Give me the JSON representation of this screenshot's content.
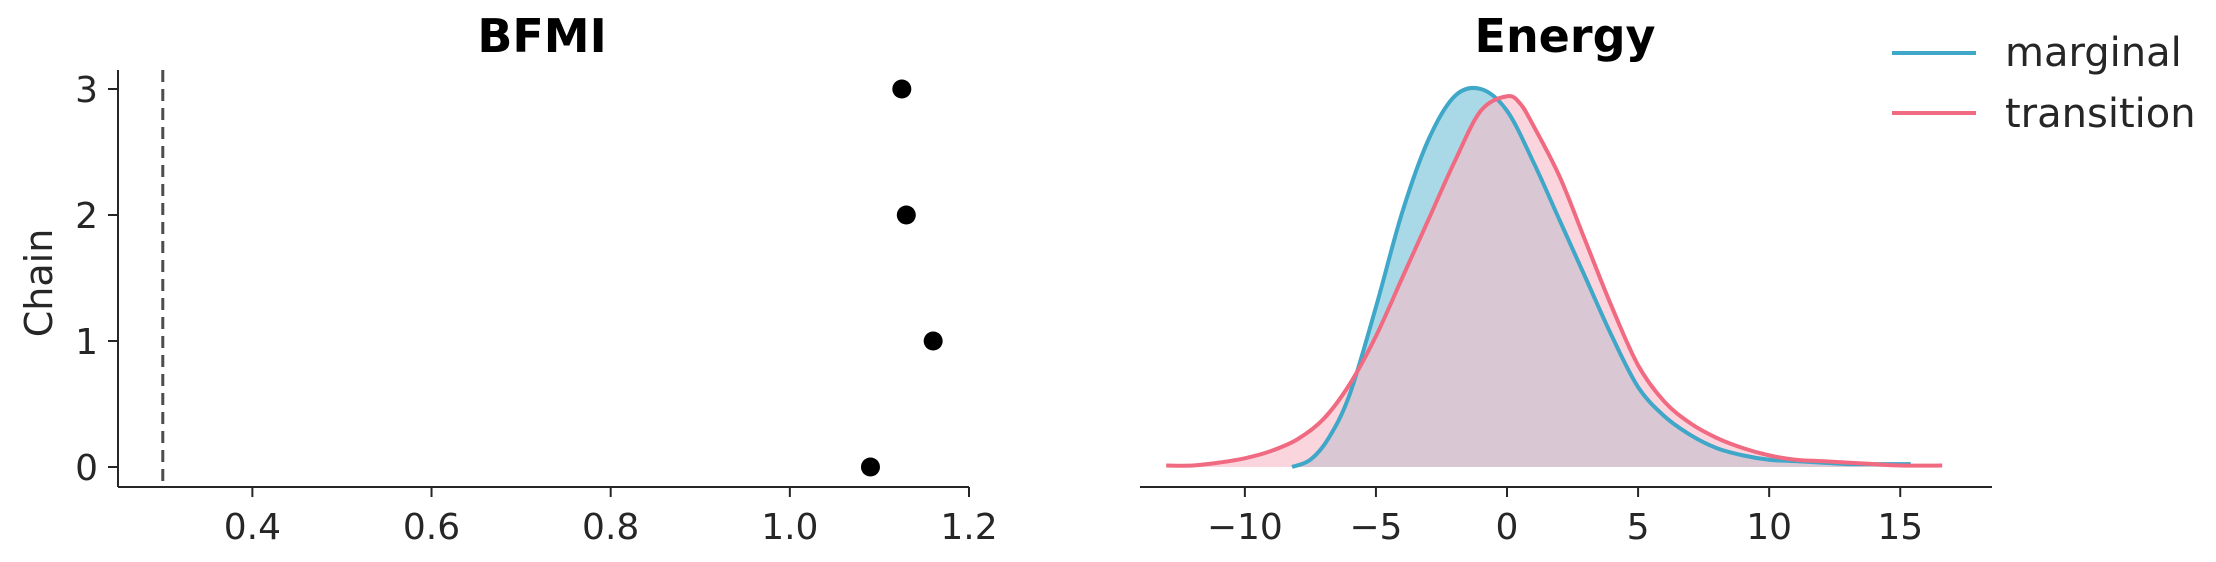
{
  "chart_data": [
    {
      "type": "scatter",
      "title": "BFMI",
      "xlabel": "",
      "ylabel": "Chain",
      "xlim": [
        0.25,
        1.2
      ],
      "ylim": [
        -0.15,
        3.15
      ],
      "xticks": [
        "0.4",
        "0.6",
        "0.8",
        "1.0",
        "1.2"
      ],
      "yticks": [
        "0",
        "1",
        "2",
        "3"
      ],
      "reference_line": 0.3,
      "points": [
        {
          "chain": 0,
          "value": 1.09
        },
        {
          "chain": 1,
          "value": 1.16
        },
        {
          "chain": 2,
          "value": 1.13
        },
        {
          "chain": 3,
          "value": 1.125
        }
      ],
      "colors": {
        "points": "#000000",
        "reference_line": "#4d4d4d"
      }
    },
    {
      "type": "area",
      "title": "Energy",
      "xlabel": "",
      "ylabel": "",
      "xlim": [
        -14,
        18.5
      ],
      "xticks": [
        "−10",
        "−5",
        "0",
        "5",
        "10",
        "15"
      ],
      "legend_position": "top-right",
      "series": [
        {
          "name": "marginal",
          "color": "#3fa7c8",
          "fill": "#a9d9e6",
          "x": [
            -8.2,
            -7.5,
            -6.8,
            -6.0,
            -5.0,
            -4.0,
            -3.0,
            -2.0,
            -1.0,
            0.0,
            1.0,
            2.0,
            3.0,
            4.0,
            5.0,
            6.0,
            7.0,
            8.0,
            9.0,
            10.0,
            11.0,
            12.0,
            13.0,
            14.0,
            15.4
          ],
          "y": [
            0.0,
            0.005,
            0.02,
            0.05,
            0.11,
            0.175,
            0.225,
            0.255,
            0.26,
            0.245,
            0.21,
            0.17,
            0.13,
            0.09,
            0.055,
            0.035,
            0.022,
            0.013,
            0.008,
            0.005,
            0.004,
            0.003,
            0.002,
            0.002,
            0.002
          ]
        },
        {
          "name": "transition",
          "color": "#f06b82",
          "fill": "#f8bcc8",
          "x": [
            -13.0,
            -12.0,
            -11.0,
            -10.0,
            -9.0,
            -8.0,
            -7.0,
            -6.0,
            -5.0,
            -4.0,
            -3.0,
            -2.0,
            -1.0,
            0.0,
            0.5,
            1.0,
            2.0,
            3.0,
            4.0,
            5.0,
            6.0,
            7.0,
            8.0,
            9.0,
            10.0,
            11.0,
            12.0,
            13.0,
            14.0,
            15.0,
            16.6
          ],
          "y": [
            0.001,
            0.001,
            0.003,
            0.006,
            0.011,
            0.019,
            0.033,
            0.057,
            0.09,
            0.13,
            0.17,
            0.21,
            0.245,
            0.255,
            0.25,
            0.235,
            0.2,
            0.155,
            0.11,
            0.07,
            0.045,
            0.03,
            0.02,
            0.013,
            0.008,
            0.005,
            0.004,
            0.003,
            0.002,
            0.001,
            0.001
          ]
        }
      ]
    }
  ]
}
